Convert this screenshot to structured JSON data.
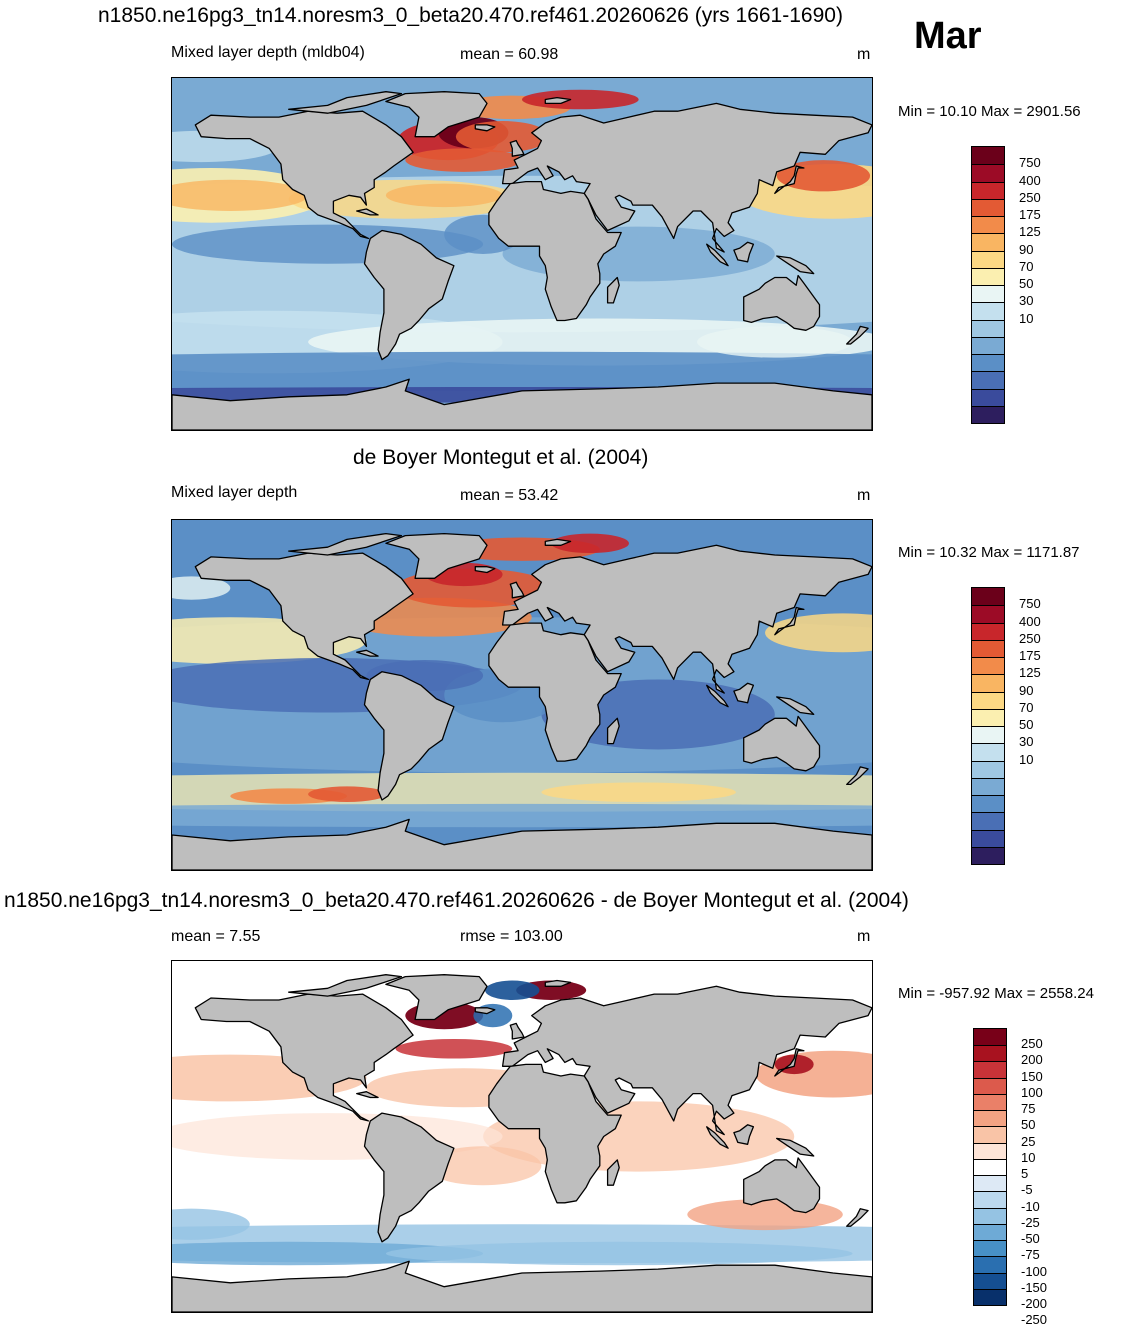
{
  "month": "Mar",
  "panels": [
    {
      "title": "n1850.ne16pg3_tn14.noresm3_0_beta20.470.ref461.20260626 (yrs 1661-1690)",
      "left_label": "Mixed layer depth (mldb04)",
      "center_label": "mean =  60.98",
      "units": "m",
      "minmax": "Min =  10.10 Max = 2901.56",
      "palette": "mld",
      "colorbar_labels": [
        "750",
        "400",
        "250",
        "175",
        "125",
        "90",
        "70",
        "50",
        "30",
        "10"
      ]
    },
    {
      "title": "de Boyer Montegut et al. (2004)",
      "left_label": "Mixed layer depth",
      "center_label": "mean =  53.42",
      "units": "m",
      "minmax": "Min =  10.32 Max = 1171.87",
      "palette": "mld",
      "colorbar_labels": [
        "750",
        "400",
        "250",
        "175",
        "125",
        "90",
        "70",
        "50",
        "30",
        "10"
      ]
    },
    {
      "title": "n1850.ne16pg3_tn14.noresm3_0_beta20.470.ref461.20260626 - de Boyer Montegut et al. (2004)",
      "left_label": "mean =   7.55",
      "center_label": "rmse = 103.00",
      "units": "m",
      "minmax": "Min = -957.92 Max = 2558.24",
      "palette": "diff",
      "colorbar_labels": [
        "250",
        "200",
        "150",
        "100",
        "75",
        "50",
        "25",
        "10",
        "5",
        "-5",
        "-10",
        "-25",
        "-50",
        "-75",
        "-100",
        "-150",
        "-200",
        "-250"
      ]
    }
  ],
  "colors": {
    "land": "#bebebe",
    "mld_scale": [
      "#2d1e5e",
      "#3a4b9c",
      "#4a6fb5",
      "#5b8fc6",
      "#7aaad3",
      "#9fc7e2",
      "#c4e0ee",
      "#e9f5f4",
      "#fbefb0",
      "#fcd884",
      "#f9b562",
      "#f28b4a",
      "#e35a34",
      "#c8262b",
      "#9c0b26",
      "#6b001a"
    ],
    "diff_scale": [
      "#08306b",
      "#154f92",
      "#2a6fb0",
      "#4790c6",
      "#6eaad6",
      "#95c3e3",
      "#bbd8ee",
      "#dde9f5",
      "#ffffff",
      "#fde4d7",
      "#f9c4a7",
      "#f3a383",
      "#ea8068",
      "#dc5a4c",
      "#c83338",
      "#a8121f",
      "#780018"
    ]
  }
}
